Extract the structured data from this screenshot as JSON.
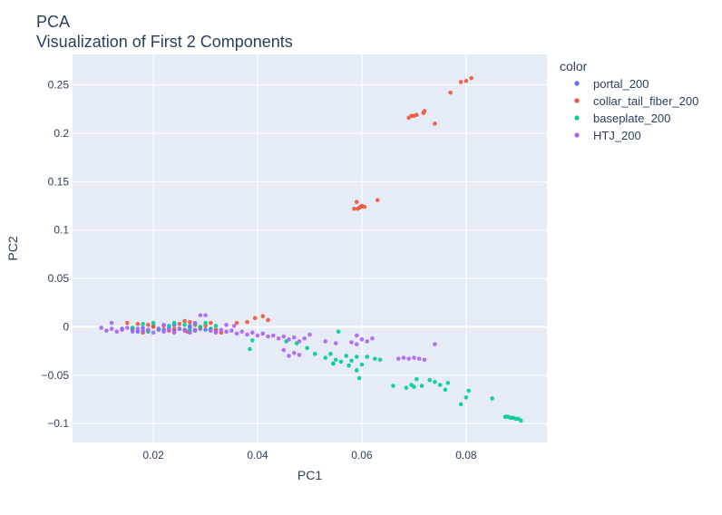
{
  "chart_data": {
    "type": "scatter",
    "title": "PCA",
    "subtitle": "Visualization of First 2 Components",
    "xlabel": "PC1",
    "ylabel": "PC2",
    "xlim": [
      0.0045,
      0.0955
    ],
    "ylim": [
      -0.1195,
      0.2815
    ],
    "x_ticks": [
      0.02,
      0.04,
      0.06,
      0.08
    ],
    "x_tick_labels": [
      "0.02",
      "0.04",
      "0.06",
      "0.08"
    ],
    "y_ticks": [
      -0.1,
      -0.05,
      0,
      0.05,
      0.1,
      0.15,
      0.2,
      0.25
    ],
    "y_tick_labels": [
      "−0.1",
      "−0.05",
      "0",
      "0.05",
      "0.1",
      "0.15",
      "0.2",
      "0.25"
    ],
    "grid": true,
    "legend_title": "color",
    "legend_position": "right",
    "series": [
      {
        "name": "portal_200",
        "color": "#636efa",
        "points": [
          [
            0.014,
            -0.002
          ],
          [
            0.016,
            -0.003
          ],
          [
            0.018,
            -0.001
          ],
          [
            0.019,
            -0.004
          ],
          [
            0.021,
            -0.002
          ],
          [
            0.022,
            -0.003
          ],
          [
            0.023,
            -0.001
          ],
          [
            0.024,
            -0.004
          ],
          [
            0.025,
            -0.002
          ],
          [
            0.026,
            -0.003
          ],
          [
            0.027,
            -0.001
          ],
          [
            0.028,
            -0.004
          ],
          [
            0.029,
            -0.002
          ],
          [
            0.03,
            -0.003
          ],
          [
            0.031,
            -0.002
          ],
          [
            0.02,
            0.001
          ],
          [
            0.024,
            0.002
          ],
          [
            0.027,
            0.001
          ],
          [
            0.032,
            -0.004
          ],
          [
            0.017,
            -0.005
          ]
        ]
      },
      {
        "name": "collar_tail_fiber_200",
        "color": "#ef553b",
        "points": [
          [
            0.081,
            0.257
          ],
          [
            0.08,
            0.254
          ],
          [
            0.079,
            0.253
          ],
          [
            0.077,
            0.242
          ],
          [
            0.074,
            0.21
          ],
          [
            0.072,
            0.223
          ],
          [
            0.0718,
            0.221
          ],
          [
            0.0705,
            0.219
          ],
          [
            0.07,
            0.218
          ],
          [
            0.0695,
            0.218
          ],
          [
            0.069,
            0.216
          ],
          [
            0.063,
            0.131
          ],
          [
            0.06,
            0.125
          ],
          [
            0.0598,
            0.124
          ],
          [
            0.0595,
            0.123
          ],
          [
            0.0592,
            0.122
          ],
          [
            0.059,
            0.129
          ],
          [
            0.0585,
            0.122
          ],
          [
            0.0605,
            0.124
          ],
          [
            0.041,
            0.011
          ],
          [
            0.0395,
            0.009
          ],
          [
            0.042,
            0.007
          ],
          [
            0.038,
            0.005
          ],
          [
            0.036,
            0.004
          ],
          [
            0.015,
            0.004
          ],
          [
            0.017,
            0.003
          ],
          [
            0.019,
            0.002
          ],
          [
            0.02,
            0.0
          ],
          [
            0.022,
            0.001
          ],
          [
            0.024,
            -0.002
          ],
          [
            0.025,
            0.003
          ],
          [
            0.026,
            0.006
          ],
          [
            0.027,
            0.005
          ],
          [
            0.028,
            0.002
          ],
          [
            0.029,
            -0.001
          ],
          [
            0.03,
            0.001
          ],
          [
            0.031,
            0.004
          ],
          [
            0.032,
            -0.003
          ],
          [
            0.033,
            -0.006
          ],
          [
            0.023,
            -0.004
          ],
          [
            0.021,
            -0.003
          ],
          [
            0.018,
            -0.006
          ],
          [
            0.016,
            -0.002
          ],
          [
            0.0265,
            -0.005
          ]
        ]
      },
      {
        "name": "baseplate_200",
        "color": "#00cc96",
        "points": [
          [
            0.0905,
            -0.097
          ],
          [
            0.09,
            -0.095
          ],
          [
            0.0895,
            -0.095
          ],
          [
            0.089,
            -0.094
          ],
          [
            0.0885,
            -0.094
          ],
          [
            0.088,
            -0.093
          ],
          [
            0.0875,
            -0.093
          ],
          [
            0.085,
            -0.074
          ],
          [
            0.0805,
            -0.066
          ],
          [
            0.08,
            -0.073
          ],
          [
            0.079,
            -0.08
          ],
          [
            0.0765,
            -0.058
          ],
          [
            0.076,
            -0.065
          ],
          [
            0.075,
            -0.06
          ],
          [
            0.074,
            -0.057
          ],
          [
            0.073,
            -0.055
          ],
          [
            0.0715,
            -0.061
          ],
          [
            0.0705,
            -0.054
          ],
          [
            0.07,
            -0.062
          ],
          [
            0.0695,
            -0.06
          ],
          [
            0.0685,
            -0.063
          ],
          [
            0.066,
            -0.061
          ],
          [
            0.0635,
            -0.034
          ],
          [
            0.0625,
            -0.033
          ],
          [
            0.061,
            -0.031
          ],
          [
            0.06,
            -0.039
          ],
          [
            0.0595,
            -0.053
          ],
          [
            0.059,
            -0.031
          ],
          [
            0.058,
            -0.035
          ],
          [
            0.0575,
            -0.04
          ],
          [
            0.057,
            -0.03
          ],
          [
            0.056,
            -0.036
          ],
          [
            0.055,
            -0.034
          ],
          [
            0.0545,
            -0.038
          ],
          [
            0.054,
            -0.028
          ],
          [
            0.053,
            -0.032
          ],
          [
            0.051,
            -0.028
          ],
          [
            0.0495,
            -0.022
          ],
          [
            0.0475,
            -0.017
          ],
          [
            0.0455,
            -0.015
          ],
          [
            0.0555,
            -0.005
          ],
          [
            0.0545,
            -0.038
          ],
          [
            0.059,
            -0.045
          ],
          [
            0.0385,
            -0.023
          ],
          [
            0.039,
            -0.014
          ],
          [
            0.016,
            -0.001
          ],
          [
            0.018,
            0.003
          ],
          [
            0.02,
            0.004
          ],
          [
            0.021,
            -0.003
          ],
          [
            0.023,
            0.001
          ],
          [
            0.024,
            0.004
          ],
          [
            0.025,
            -0.002
          ],
          [
            0.026,
            0.002
          ],
          [
            0.027,
            -0.004
          ],
          [
            0.028,
            0.003
          ],
          [
            0.029,
            0.0
          ],
          [
            0.03,
            0.004
          ],
          [
            0.031,
            -0.002
          ],
          [
            0.032,
            0.001
          ],
          [
            0.019,
            -0.005
          ]
        ]
      },
      {
        "name": "HTJ_200",
        "color": "#ab63fa",
        "points": [
          [
            0.01,
            -0.001
          ],
          [
            0.011,
            -0.004
          ],
          [
            0.012,
            -0.002
          ],
          [
            0.013,
            -0.005
          ],
          [
            0.014,
            -0.003
          ],
          [
            0.015,
            -0.001
          ],
          [
            0.016,
            -0.005
          ],
          [
            0.017,
            -0.002
          ],
          [
            0.018,
            -0.004
          ],
          [
            0.019,
            -0.003
          ],
          [
            0.02,
            -0.006
          ],
          [
            0.021,
            -0.002
          ],
          [
            0.022,
            -0.005
          ],
          [
            0.023,
            -0.003
          ],
          [
            0.024,
            -0.006
          ],
          [
            0.025,
            -0.002
          ],
          [
            0.026,
            -0.004
          ],
          [
            0.027,
            -0.006
          ],
          [
            0.028,
            -0.003
          ],
          [
            0.029,
            0.012
          ],
          [
            0.03,
            0.012
          ],
          [
            0.031,
            -0.004
          ],
          [
            0.032,
            -0.006
          ],
          [
            0.033,
            -0.003
          ],
          [
            0.034,
            -0.005
          ],
          [
            0.035,
            -0.004
          ],
          [
            0.036,
            -0.007
          ],
          [
            0.037,
            -0.005
          ],
          [
            0.038,
            -0.008
          ],
          [
            0.039,
            -0.006
          ],
          [
            0.04,
            -0.009
          ],
          [
            0.041,
            -0.007
          ],
          [
            0.042,
            -0.01
          ],
          [
            0.043,
            -0.009
          ],
          [
            0.044,
            -0.012
          ],
          [
            0.045,
            -0.01
          ],
          [
            0.046,
            -0.013
          ],
          [
            0.047,
            -0.011
          ],
          [
            0.048,
            -0.015
          ],
          [
            0.049,
            -0.012
          ],
          [
            0.05,
            -0.008
          ],
          [
            0.045,
            -0.024
          ],
          [
            0.046,
            -0.03
          ],
          [
            0.047,
            -0.027
          ],
          [
            0.048,
            -0.029
          ],
          [
            0.053,
            -0.015
          ],
          [
            0.055,
            -0.017
          ],
          [
            0.058,
            -0.016
          ],
          [
            0.059,
            -0.018
          ],
          [
            0.06,
            -0.013
          ],
          [
            0.061,
            -0.015
          ],
          [
            0.062,
            -0.012
          ],
          [
            0.059,
            -0.009
          ],
          [
            0.067,
            -0.033
          ],
          [
            0.068,
            -0.032
          ],
          [
            0.069,
            -0.033
          ],
          [
            0.07,
            -0.032
          ],
          [
            0.071,
            -0.033
          ],
          [
            0.072,
            -0.034
          ],
          [
            0.074,
            -0.018
          ],
          [
            0.012,
            0.004
          ],
          [
            0.022,
            0.002
          ],
          [
            0.028,
            0.004
          ],
          [
            0.034,
            0.002
          ],
          [
            0.0355,
            0.001
          ]
        ]
      }
    ]
  }
}
